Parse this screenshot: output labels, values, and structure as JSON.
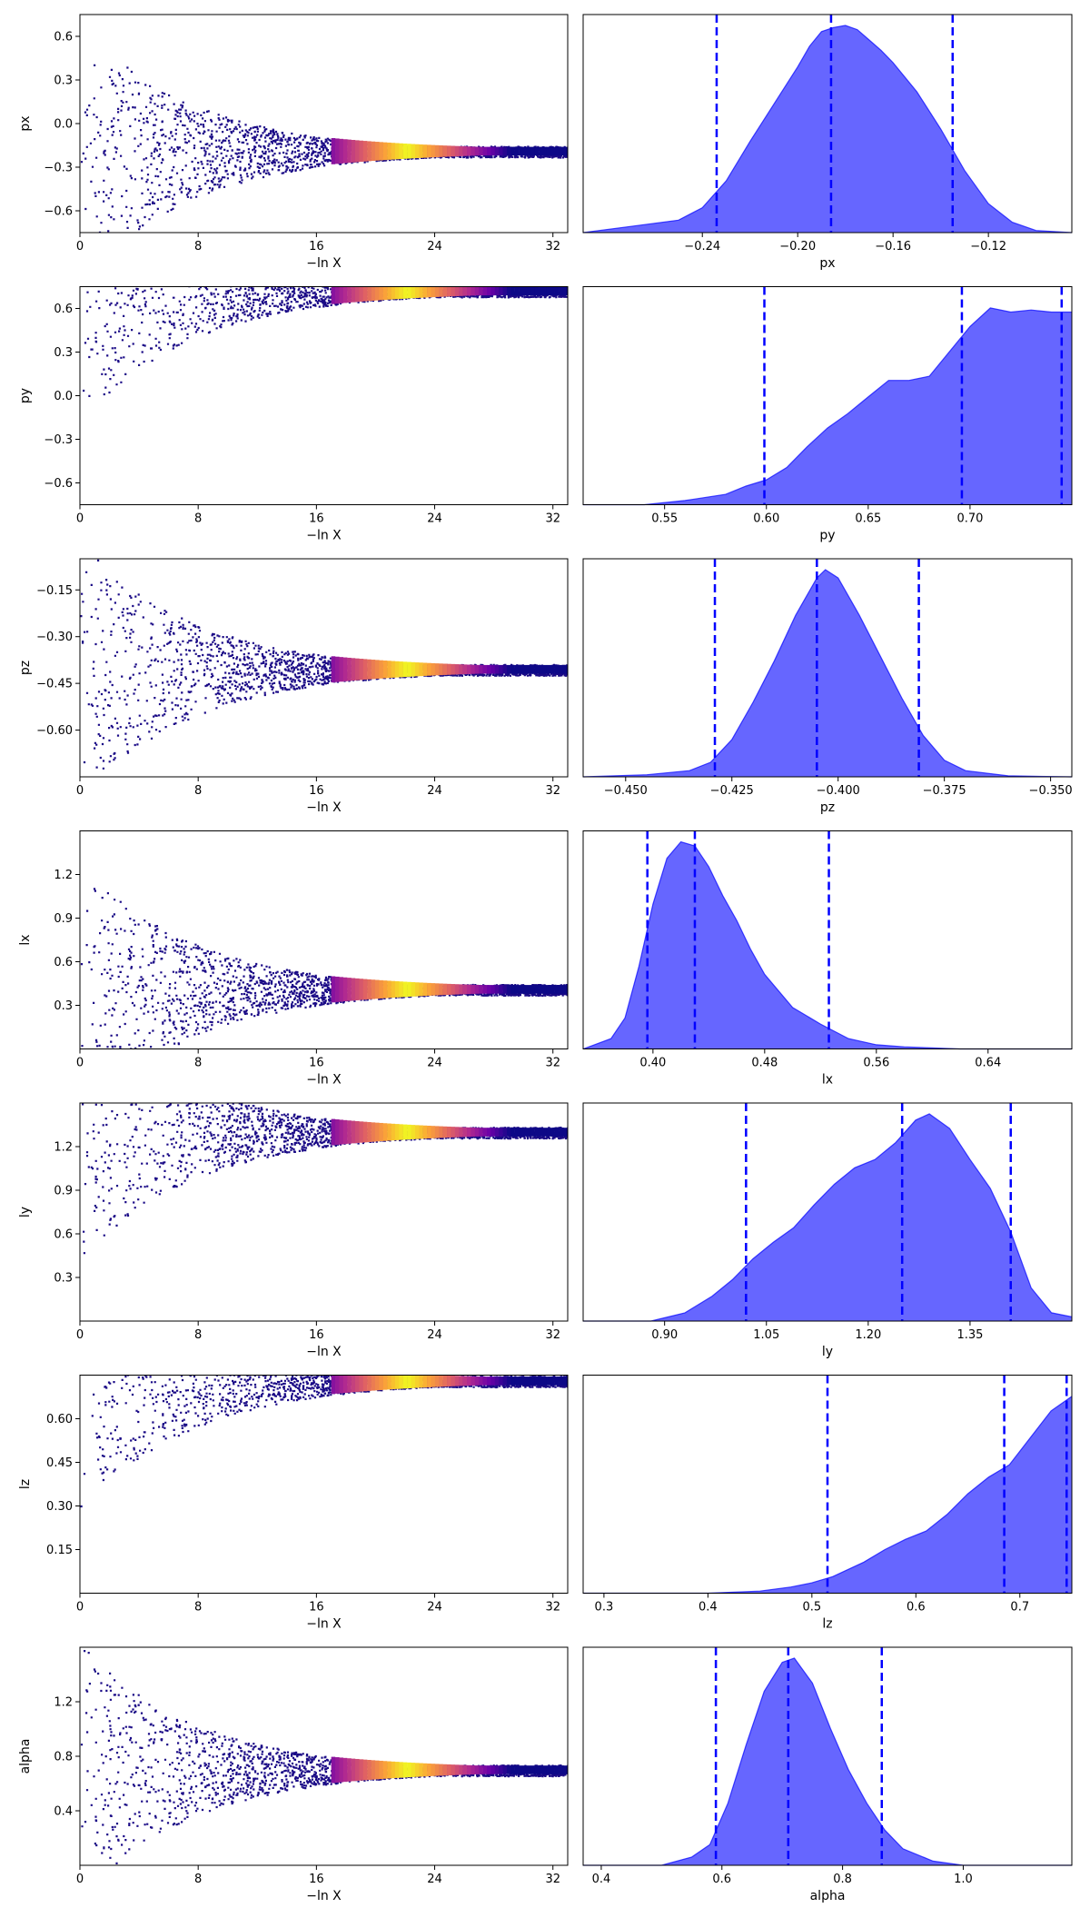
{
  "chart_data": [
    {
      "type": "scatter",
      "panel": "trace",
      "parameter": "px",
      "xlabel": "−ln X",
      "ylabel": "px",
      "xlim": [
        0,
        33
      ],
      "ylim": [
        -0.75,
        0.75
      ],
      "xticks": [
        0,
        8,
        16,
        24,
        32
      ],
      "yticks": [
        -0.6,
        -0.3,
        0.0,
        0.3,
        0.6
      ],
      "ytick_labels": [
        "−0.6",
        "−0.3",
        "0.0",
        "0.3",
        "0.6"
      ],
      "converge_value": -0.19,
      "colormap": "plasma"
    },
    {
      "type": "area",
      "panel": "posterior",
      "parameter": "px",
      "xlabel": "px",
      "xlim": [
        -0.29,
        -0.085
      ],
      "xticks": [
        -0.24,
        -0.2,
        -0.16,
        -0.12
      ],
      "xtick_labels": [
        "−0.24",
        "−0.20",
        "−0.16",
        "−0.12"
      ],
      "quantile_lines": [
        -0.234,
        -0.186,
        -0.135
      ],
      "fill_color": "#6666ff",
      "line_color": "#0000ff",
      "density": {
        "x": [
          -0.29,
          -0.27,
          -0.25,
          -0.24,
          -0.23,
          -0.22,
          -0.21,
          -0.2,
          -0.195,
          -0.19,
          -0.185,
          -0.18,
          -0.175,
          -0.17,
          -0.165,
          -0.16,
          -0.15,
          -0.14,
          -0.13,
          -0.12,
          -0.11,
          -0.1,
          -0.085
        ],
        "y": [
          0.0,
          0.03,
          0.06,
          0.12,
          0.25,
          0.44,
          0.62,
          0.8,
          0.9,
          0.97,
          0.99,
          1.0,
          0.98,
          0.93,
          0.88,
          0.82,
          0.68,
          0.5,
          0.3,
          0.14,
          0.05,
          0.01,
          0.0
        ]
      }
    },
    {
      "type": "scatter",
      "panel": "trace",
      "parameter": "py",
      "xlabel": "−ln X",
      "ylabel": "py",
      "xlim": [
        0,
        33
      ],
      "ylim": [
        -0.75,
        0.75
      ],
      "xticks": [
        0,
        8,
        16,
        24,
        32
      ],
      "yticks": [
        -0.6,
        -0.3,
        0.0,
        0.3,
        0.6
      ],
      "ytick_labels": [
        "−0.6",
        "−0.3",
        "0.0",
        "0.3",
        "0.6"
      ],
      "converge_value": 0.72,
      "colormap": "plasma"
    },
    {
      "type": "area",
      "panel": "posterior",
      "parameter": "py",
      "xlabel": "py",
      "xlim": [
        0.51,
        0.75
      ],
      "xticks": [
        0.55,
        0.6,
        0.65,
        0.7
      ],
      "xtick_labels": [
        "0.55",
        "0.60",
        "0.65",
        "0.70"
      ],
      "quantile_lines": [
        0.599,
        0.696,
        0.745
      ],
      "fill_color": "#6666ff",
      "line_color": "#0000ff",
      "density": {
        "x": [
          0.51,
          0.54,
          0.56,
          0.58,
          0.59,
          0.6,
          0.61,
          0.62,
          0.63,
          0.64,
          0.65,
          0.66,
          0.67,
          0.68,
          0.69,
          0.7,
          0.71,
          0.72,
          0.73,
          0.74,
          0.75
        ],
        "y": [
          0.0,
          0.0,
          0.02,
          0.05,
          0.09,
          0.12,
          0.18,
          0.28,
          0.37,
          0.44,
          0.52,
          0.6,
          0.6,
          0.62,
          0.74,
          0.86,
          0.95,
          0.93,
          0.94,
          0.93,
          0.93
        ]
      }
    },
    {
      "type": "scatter",
      "panel": "trace",
      "parameter": "pz",
      "xlabel": "−ln X",
      "ylabel": "pz",
      "xlim": [
        0,
        33
      ],
      "ylim": [
        -0.75,
        -0.05
      ],
      "xticks": [
        0,
        8,
        16,
        24,
        32
      ],
      "yticks": [
        -0.6,
        -0.45,
        -0.3,
        -0.15
      ],
      "ytick_labels": [
        "−0.60",
        "−0.45",
        "−0.30",
        "−0.15"
      ],
      "converge_value": -0.405,
      "colormap": "plasma"
    },
    {
      "type": "area",
      "panel": "posterior",
      "parameter": "pz",
      "xlabel": "pz",
      "xlim": [
        -0.46,
        -0.345
      ],
      "xticks": [
        -0.45,
        -0.425,
        -0.4,
        -0.375,
        -0.35
      ],
      "xtick_labels": [
        "−0.450",
        "−0.425",
        "−0.400",
        "−0.375",
        "−0.350"
      ],
      "quantile_lines": [
        -0.429,
        -0.405,
        -0.381
      ],
      "fill_color": "#6666ff",
      "line_color": "#0000ff",
      "density": {
        "x": [
          -0.46,
          -0.445,
          -0.435,
          -0.43,
          -0.425,
          -0.42,
          -0.415,
          -0.41,
          -0.405,
          -0.403,
          -0.4,
          -0.395,
          -0.39,
          -0.385,
          -0.38,
          -0.375,
          -0.37,
          -0.36,
          -0.345
        ],
        "y": [
          0.0,
          0.01,
          0.03,
          0.07,
          0.18,
          0.36,
          0.56,
          0.78,
          0.96,
          1.0,
          0.96,
          0.78,
          0.58,
          0.38,
          0.2,
          0.08,
          0.03,
          0.005,
          0.0
        ]
      }
    },
    {
      "type": "scatter",
      "panel": "trace",
      "parameter": "lx",
      "xlabel": "−ln X",
      "ylabel": "lx",
      "xlim": [
        0,
        33
      ],
      "ylim": [
        0.0,
        1.5
      ],
      "xticks": [
        0,
        8,
        16,
        24,
        32
      ],
      "yticks": [
        0.3,
        0.6,
        0.9,
        1.2
      ],
      "ytick_labels": [
        "0.3",
        "0.6",
        "0.9",
        "1.2"
      ],
      "converge_value": 0.41,
      "colormap": "plasma"
    },
    {
      "type": "area",
      "panel": "posterior",
      "parameter": "lx",
      "xlabel": "lx",
      "xlim": [
        0.35,
        0.7
      ],
      "xticks": [
        0.4,
        0.48,
        0.56,
        0.64
      ],
      "xtick_labels": [
        "0.40",
        "0.48",
        "0.56",
        "0.64"
      ],
      "quantile_lines": [
        0.396,
        0.43,
        0.526
      ],
      "fill_color": "#6666ff",
      "line_color": "#0000ff",
      "density": {
        "x": [
          0.35,
          0.37,
          0.38,
          0.39,
          0.4,
          0.41,
          0.42,
          0.43,
          0.44,
          0.45,
          0.46,
          0.47,
          0.48,
          0.5,
          0.52,
          0.54,
          0.56,
          0.58,
          0.62,
          0.7
        ],
        "y": [
          0.0,
          0.05,
          0.15,
          0.4,
          0.7,
          0.92,
          1.0,
          0.98,
          0.88,
          0.74,
          0.62,
          0.48,
          0.36,
          0.2,
          0.12,
          0.05,
          0.02,
          0.01,
          0.0,
          0.0
        ]
      }
    },
    {
      "type": "scatter",
      "panel": "trace",
      "parameter": "ly",
      "xlabel": "−ln X",
      "ylabel": "ly",
      "xlim": [
        0,
        33
      ],
      "ylim": [
        0.0,
        1.5
      ],
      "xticks": [
        0,
        8,
        16,
        24,
        32
      ],
      "yticks": [
        0.3,
        0.6,
        0.9,
        1.2
      ],
      "ytick_labels": [
        "0.3",
        "0.6",
        "0.9",
        "1.2"
      ],
      "converge_value": 1.3,
      "colormap": "plasma"
    },
    {
      "type": "area",
      "panel": "posterior",
      "parameter": "ly",
      "xlabel": "ly",
      "xlim": [
        0.78,
        1.5
      ],
      "xticks": [
        0.9,
        1.05,
        1.2,
        1.35
      ],
      "xtick_labels": [
        "0.90",
        "1.05",
        "1.20",
        "1.35"
      ],
      "quantile_lines": [
        1.02,
        1.25,
        1.41
      ],
      "fill_color": "#6666ff",
      "line_color": "#0000ff",
      "density": {
        "x": [
          0.78,
          0.88,
          0.93,
          0.97,
          1.0,
          1.03,
          1.06,
          1.09,
          1.12,
          1.15,
          1.18,
          1.21,
          1.24,
          1.27,
          1.29,
          1.32,
          1.35,
          1.38,
          1.41,
          1.44,
          1.47,
          1.5
        ],
        "y": [
          0.0,
          0.0,
          0.04,
          0.12,
          0.2,
          0.3,
          0.38,
          0.45,
          0.56,
          0.66,
          0.74,
          0.78,
          0.86,
          0.97,
          1.0,
          0.93,
          0.78,
          0.64,
          0.43,
          0.16,
          0.04,
          0.02
        ]
      }
    },
    {
      "type": "scatter",
      "panel": "trace",
      "parameter": "lz",
      "xlabel": "−ln X",
      "ylabel": "lz",
      "xlim": [
        0,
        33
      ],
      "ylim": [
        0.0,
        0.75
      ],
      "xticks": [
        0,
        8,
        16,
        24,
        32
      ],
      "yticks": [
        0.15,
        0.3,
        0.45,
        0.6
      ],
      "ytick_labels": [
        "0.15",
        "0.30",
        "0.45",
        "0.60"
      ],
      "converge_value": 0.73,
      "colormap": "plasma"
    },
    {
      "type": "area",
      "panel": "posterior",
      "parameter": "lz",
      "xlabel": "lz",
      "xlim": [
        0.28,
        0.75
      ],
      "xticks": [
        0.3,
        0.4,
        0.5,
        0.6,
        0.7
      ],
      "xtick_labels": [
        "0.3",
        "0.4",
        "0.5",
        "0.6",
        "0.7"
      ],
      "quantile_lines": [
        0.515,
        0.685,
        0.745
      ],
      "fill_color": "#6666ff",
      "line_color": "#0000ff",
      "density": {
        "x": [
          0.28,
          0.4,
          0.45,
          0.48,
          0.5,
          0.52,
          0.55,
          0.57,
          0.59,
          0.61,
          0.63,
          0.65,
          0.67,
          0.69,
          0.71,
          0.73,
          0.75
        ],
        "y": [
          0.0,
          0.0,
          0.01,
          0.03,
          0.05,
          0.08,
          0.15,
          0.21,
          0.26,
          0.3,
          0.38,
          0.48,
          0.56,
          0.62,
          0.75,
          0.88,
          0.95
        ]
      }
    },
    {
      "type": "scatter",
      "panel": "trace",
      "parameter": "alpha",
      "xlabel": "−ln X",
      "ylabel": "alpha",
      "xlim": [
        0,
        33
      ],
      "ylim": [
        0.0,
        1.6
      ],
      "xticks": [
        0,
        8,
        16,
        24,
        32
      ],
      "yticks": [
        0.4,
        0.8,
        1.2
      ],
      "ytick_labels": [
        "0.4",
        "0.8",
        "1.2"
      ],
      "converge_value": 0.7,
      "colormap": "plasma"
    },
    {
      "type": "area",
      "panel": "posterior",
      "parameter": "alpha",
      "xlabel": "alpha",
      "xlim": [
        0.37,
        1.18
      ],
      "xticks": [
        0.4,
        0.6,
        0.8,
        1.0
      ],
      "xtick_labels": [
        "0.4",
        "0.6",
        "0.8",
        "1.0"
      ],
      "quantile_lines": [
        0.59,
        0.71,
        0.865
      ],
      "fill_color": "#6666ff",
      "line_color": "#0000ff",
      "density": {
        "x": [
          0.37,
          0.5,
          0.55,
          0.58,
          0.61,
          0.64,
          0.67,
          0.7,
          0.72,
          0.75,
          0.78,
          0.81,
          0.84,
          0.87,
          0.9,
          0.95,
          1.0,
          1.18
        ],
        "y": [
          0.0,
          0.0,
          0.04,
          0.1,
          0.3,
          0.58,
          0.84,
          0.98,
          1.0,
          0.88,
          0.66,
          0.46,
          0.3,
          0.17,
          0.08,
          0.02,
          0.0,
          0.0
        ]
      }
    }
  ]
}
